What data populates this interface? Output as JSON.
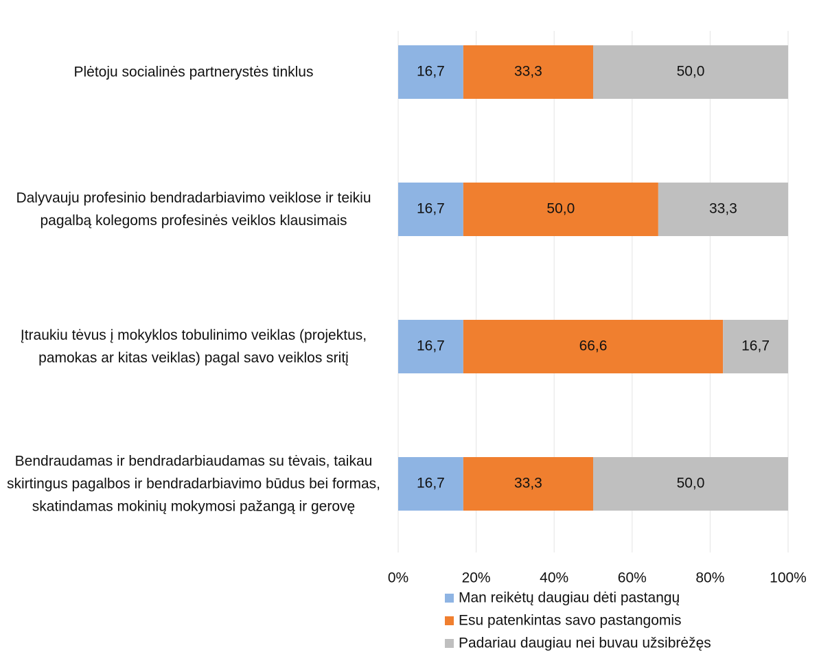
{
  "chart_data": {
    "type": "stacked_bar_horizontal",
    "categories": [
      "Plėtoju socialinės partnerystės tinklus",
      "Dalyvauju profesinio bendradarbiavimo veiklose ir teikiu pagalbą kolegoms profesinės veiklos klausimais",
      "Įtraukiu tėvus į mokyklos tobulinimo veiklas (projektus, pamokas ar kitas veiklas) pagal savo veiklos sritį",
      "Bendraudamas ir bendradarbiaudamas su tėvais, taikau skirtingus pagalbos ir bendradarbiavimo būdus bei formas, skatindamas mokinių mokymosi pažangą ir gerovę"
    ],
    "series": [
      {
        "name": "Man reikėtų daugiau dėti pastangų",
        "color": "#8eb4e3",
        "values": [
          16.7,
          16.7,
          16.7,
          16.7
        ],
        "value_labels": [
          "16,7",
          "16,7",
          "16,7",
          "16,7"
        ]
      },
      {
        "name": "Esu patenkintas savo pastangomis",
        "color": "#f07f2f",
        "values": [
          33.3,
          50.0,
          66.6,
          33.3
        ],
        "value_labels": [
          "33,3",
          "50,0",
          "66,6",
          "33,3"
        ]
      },
      {
        "name": "Padariau daugiau nei buvau užsibrėžęs",
        "color": "#bfbfbf",
        "values": [
          50.0,
          33.3,
          16.7,
          50.0
        ],
        "value_labels": [
          "50,0",
          "33,3",
          "16,7",
          "50,0"
        ]
      }
    ],
    "xlim": [
      0,
      100
    ],
    "xticks": [
      {
        "value": 0,
        "label": "0%"
      },
      {
        "value": 20,
        "label": "20%"
      },
      {
        "value": 40,
        "label": "40%"
      },
      {
        "value": 60,
        "label": "60%"
      },
      {
        "value": 80,
        "label": "80%"
      },
      {
        "value": 100,
        "label": "100%"
      }
    ],
    "grid": true,
    "legend": "bottom"
  }
}
